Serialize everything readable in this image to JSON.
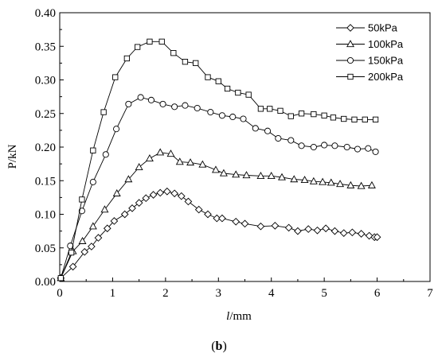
{
  "chart_data": {
    "type": "line",
    "xlabel_italic": "l",
    "xlabel_unit": "/mm",
    "ylabel": "P/kN",
    "xlim": [
      0,
      7
    ],
    "ylim": [
      0,
      0.4
    ],
    "x_ticks": [
      "0",
      "1",
      "2",
      "3",
      "4",
      "5",
      "6",
      "7"
    ],
    "y_ticks": [
      "0.00",
      "0.05",
      "0.10",
      "0.15",
      "0.20",
      "0.25",
      "0.30",
      "0.35",
      "0.40"
    ],
    "grid": false,
    "legend_position": "top-right",
    "caption_label": "b",
    "series": [
      {
        "name": "50kPa",
        "marker": "diamond",
        "x": [
          0.02,
          0.25,
          0.47,
          0.6,
          0.73,
          0.9,
          1.03,
          1.23,
          1.37,
          1.5,
          1.63,
          1.77,
          1.9,
          2.03,
          2.17,
          2.3,
          2.43,
          2.63,
          2.8,
          2.97,
          3.07,
          3.33,
          3.5,
          3.8,
          4.07,
          4.33,
          4.5,
          4.7,
          4.87,
          5.03,
          5.2,
          5.37,
          5.53,
          5.7,
          5.85,
          5.95,
          6.0
        ],
        "y": [
          0.005,
          0.022,
          0.044,
          0.052,
          0.065,
          0.079,
          0.09,
          0.1,
          0.109,
          0.117,
          0.124,
          0.129,
          0.132,
          0.134,
          0.131,
          0.127,
          0.119,
          0.107,
          0.1,
          0.094,
          0.094,
          0.089,
          0.086,
          0.082,
          0.083,
          0.08,
          0.075,
          0.078,
          0.076,
          0.079,
          0.075,
          0.072,
          0.073,
          0.071,
          0.068,
          0.066,
          0.066
        ]
      },
      {
        "name": "100kPa",
        "marker": "triangle",
        "x": [
          0.02,
          0.25,
          0.43,
          0.63,
          0.85,
          1.08,
          1.3,
          1.5,
          1.7,
          1.9,
          2.1,
          2.27,
          2.47,
          2.7,
          2.95,
          3.1,
          3.33,
          3.53,
          3.8,
          4.0,
          4.2,
          4.43,
          4.63,
          4.8,
          4.97,
          5.13,
          5.3,
          5.5,
          5.7,
          5.9
        ],
        "y": [
          0.005,
          0.045,
          0.06,
          0.082,
          0.107,
          0.131,
          0.152,
          0.17,
          0.183,
          0.192,
          0.19,
          0.178,
          0.177,
          0.174,
          0.166,
          0.161,
          0.159,
          0.158,
          0.157,
          0.157,
          0.155,
          0.152,
          0.151,
          0.149,
          0.148,
          0.147,
          0.145,
          0.143,
          0.142,
          0.143
        ]
      },
      {
        "name": "150kPa",
        "marker": "circle",
        "x": [
          0.02,
          0.2,
          0.42,
          0.63,
          0.87,
          1.07,
          1.3,
          1.53,
          1.73,
          1.95,
          2.17,
          2.37,
          2.6,
          2.85,
          3.07,
          3.27,
          3.47,
          3.7,
          3.93,
          4.13,
          4.37,
          4.57,
          4.8,
          5.0,
          5.2,
          5.43,
          5.63,
          5.83,
          5.97
        ],
        "y": [
          0.005,
          0.053,
          0.105,
          0.148,
          0.189,
          0.227,
          0.264,
          0.274,
          0.27,
          0.264,
          0.26,
          0.262,
          0.258,
          0.252,
          0.247,
          0.245,
          0.242,
          0.228,
          0.224,
          0.213,
          0.21,
          0.202,
          0.2,
          0.203,
          0.202,
          0.2,
          0.197,
          0.198,
          0.193
        ]
      },
      {
        "name": "200kPa",
        "marker": "square",
        "x": [
          0.02,
          0.22,
          0.42,
          0.63,
          0.83,
          1.05,
          1.27,
          1.47,
          1.7,
          1.93,
          2.15,
          2.37,
          2.57,
          2.8,
          3.0,
          3.17,
          3.37,
          3.57,
          3.8,
          3.97,
          4.17,
          4.37,
          4.57,
          4.8,
          5.0,
          5.17,
          5.37,
          5.57,
          5.77,
          5.97
        ],
        "y": [
          0.005,
          0.043,
          0.122,
          0.195,
          0.252,
          0.304,
          0.332,
          0.349,
          0.357,
          0.357,
          0.34,
          0.327,
          0.325,
          0.304,
          0.298,
          0.287,
          0.281,
          0.278,
          0.257,
          0.257,
          0.254,
          0.246,
          0.25,
          0.249,
          0.247,
          0.244,
          0.242,
          0.241,
          0.241,
          0.241
        ]
      }
    ]
  }
}
